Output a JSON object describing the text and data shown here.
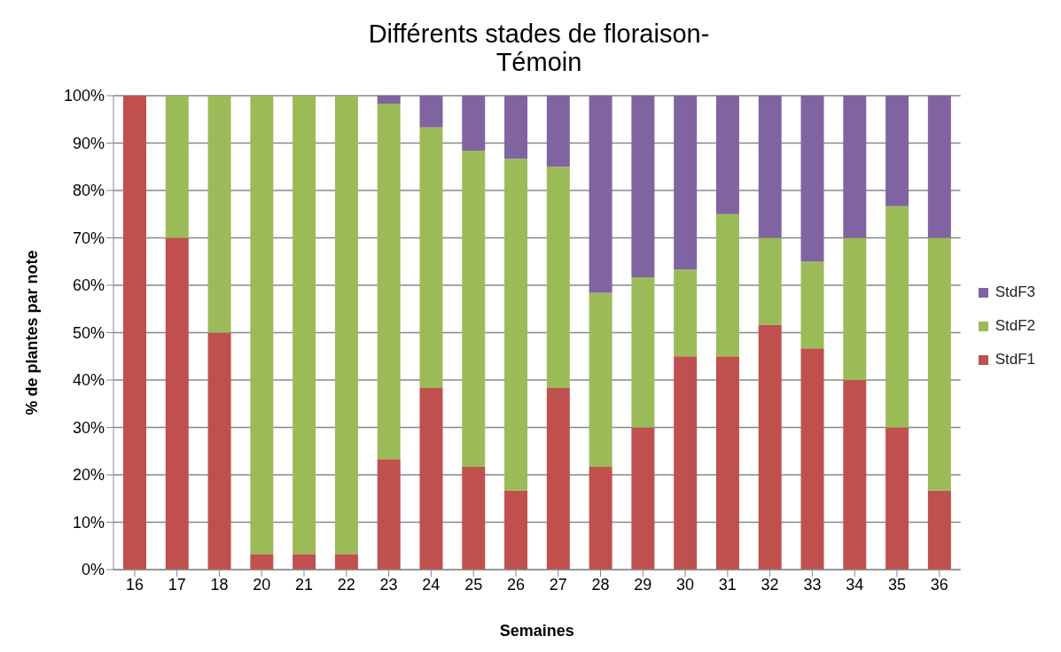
{
  "chart_data": {
    "type": "bar",
    "title": "Différents stades de floraison-Témoin",
    "xlabel": "Semaines",
    "ylabel": "% de plantes par note",
    "stacked": true,
    "grid": "y",
    "legend": "right",
    "categories": [
      "16",
      "17",
      "18",
      "20",
      "21",
      "22",
      "23",
      "24",
      "25",
      "26",
      "27",
      "28",
      "29",
      "30",
      "31",
      "32",
      "33",
      "34",
      "35",
      "36"
    ],
    "ylim": [
      0,
      100
    ],
    "yticks": [
      {
        "value": 0,
        "label": "0%"
      },
      {
        "value": 10,
        "label": "10%"
      },
      {
        "value": 20,
        "label": "20%"
      },
      {
        "value": 30,
        "label": "30%"
      },
      {
        "value": 40,
        "label": "40%"
      },
      {
        "value": 50,
        "label": "50%"
      },
      {
        "value": 60,
        "label": "60%"
      },
      {
        "value": 70,
        "label": "70%"
      },
      {
        "value": 80,
        "label": "80%"
      },
      {
        "value": 90,
        "label": "90%"
      },
      {
        "value": 100,
        "label": "100%"
      }
    ],
    "series": [
      {
        "name": "StdF1",
        "color": "#c0504d",
        "values": [
          100,
          70,
          50,
          3.3,
          3.3,
          3.3,
          23.3,
          38.3,
          21.7,
          16.7,
          38.3,
          21.7,
          30,
          45,
          45,
          51.7,
          46.7,
          40,
          30,
          16.7
        ]
      },
      {
        "name": "StdF2",
        "color": "#9bbb59",
        "values": [
          0,
          30,
          50,
          96.7,
          96.7,
          96.7,
          75,
          55,
          66.7,
          70,
          46.7,
          36.7,
          31.7,
          18.3,
          30,
          18.3,
          18.3,
          30,
          46.7,
          53.3
        ]
      },
      {
        "name": "StdF3",
        "color": "#8064a2",
        "values": [
          0,
          0,
          0,
          0,
          0,
          0,
          1.7,
          6.7,
          11.7,
          13.3,
          15,
          41.7,
          38.3,
          36.7,
          25,
          30,
          35,
          30,
          23.3,
          30
        ]
      }
    ]
  }
}
